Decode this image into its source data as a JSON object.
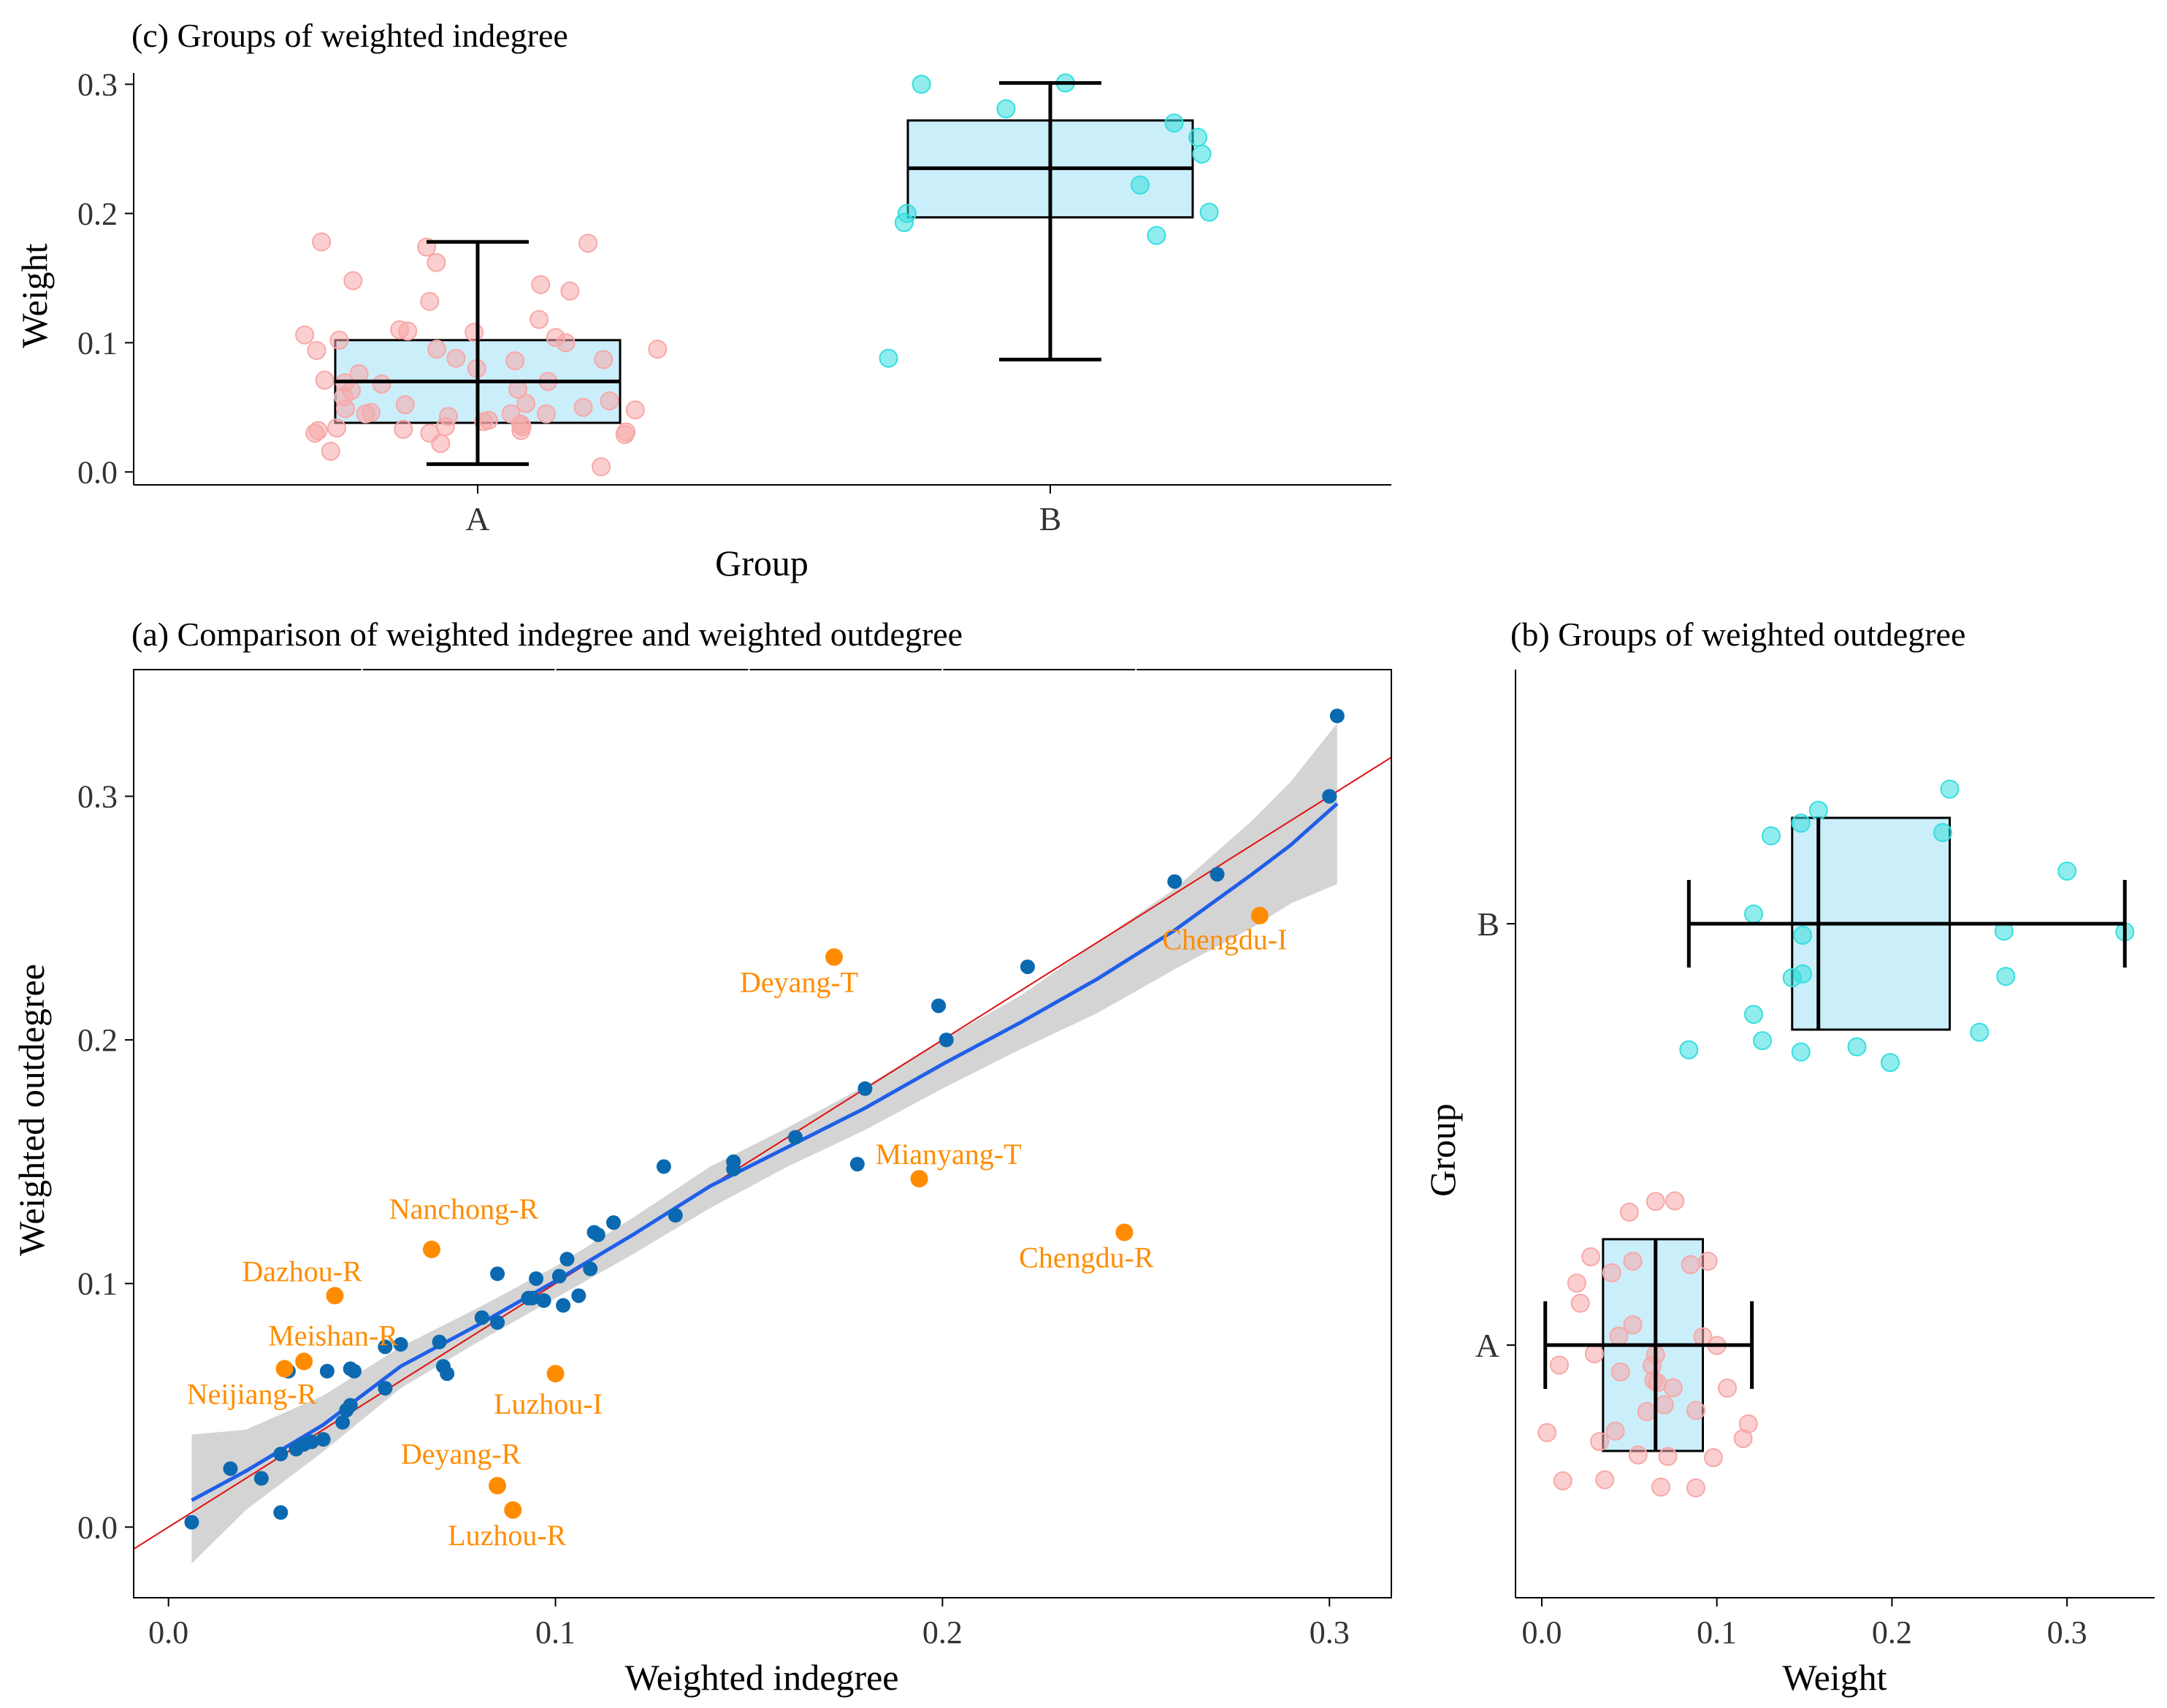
{
  "colors": {
    "axis": "#000000",
    "box_fill": "#cbeefb",
    "group_a_point": "#f8a8a8",
    "group_b_point": "#37dede",
    "scatter_point": "#0a69b0",
    "outlier_point": "#ff8c00",
    "outlier_label": "#ff8c00",
    "loess_line": "#1f5fe8",
    "ref_line": "#e01010",
    "ci_band": "#cccccc"
  },
  "chart_data": [
    {
      "id": "c",
      "type": "box",
      "title": "(c) Groups of weighted indegree",
      "xlabel": "Group",
      "ylabel": "Weight",
      "orientation": "vertical",
      "ylim": [
        -0.01,
        0.32
      ],
      "yticks": [
        0.0,
        0.1,
        0.2,
        0.3
      ],
      "ytick_labels": [
        "0.0",
        "0.1",
        "0.2",
        "0.3"
      ],
      "categories": [
        "A",
        "B"
      ],
      "boxes": [
        {
          "group": "A",
          "min": 0.006,
          "q1": 0.038,
          "median": 0.07,
          "q3": 0.102,
          "max": 0.178
        },
        {
          "group": "B",
          "min": 0.087,
          "q1": 0.197,
          "median": 0.235,
          "q3": 0.272,
          "max": 0.301
        }
      ],
      "points": [
        {
          "group": "A",
          "values": [
            0.043,
            0.033,
            0.029,
            0.037,
            0.031,
            0.045,
            0.102,
            0.087,
            0.094,
            0.11,
            0.1,
            0.053,
            0.058,
            0.032,
            0.046,
            0.108,
            0.088,
            0.148,
            0.106,
            0.069,
            0.035,
            0.05,
            0.045,
            0.076,
            0.016,
            0.095,
            0.178,
            0.177,
            0.162,
            0.14,
            0.004,
            0.08,
            0.063,
            0.095,
            0.07,
            0.048,
            0.049,
            0.145,
            0.174,
            0.132,
            0.118,
            0.071,
            0.03,
            0.068,
            0.035,
            0.052,
            0.03,
            0.022,
            0.064,
            0.109,
            0.039,
            0.086,
            0.045,
            0.055,
            0.104,
            0.034,
            0.032,
            0.04
          ]
        },
        {
          "group": "B",
          "values": [
            0.2,
            0.259,
            0.301,
            0.183,
            0.281,
            0.222,
            0.088,
            0.27,
            0.201,
            0.3,
            0.246,
            0.193
          ]
        }
      ]
    },
    {
      "id": "a",
      "type": "scatter",
      "title": "(a) Comparison of weighted indegree and weighted outdegree",
      "xlabel": "Weighted indegree",
      "ylabel": "Weighted outdegree",
      "xlim": [
        -0.009,
        0.316
      ],
      "ylim": [
        -0.029,
        0.352
      ],
      "xticks": [
        0.0,
        0.1,
        0.2,
        0.3
      ],
      "xtick_labels": [
        "0.0",
        "0.1",
        "0.2",
        "0.3"
      ],
      "yticks": [
        0.0,
        0.1,
        0.2,
        0.3
      ],
      "ytick_labels": [
        "0.0",
        "0.1",
        "0.2",
        "0.3"
      ],
      "points": [
        [
          0.006,
          0.002
        ],
        [
          0.016,
          0.024
        ],
        [
          0.024,
          0.02
        ],
        [
          0.029,
          0.006
        ],
        [
          0.029,
          0.03
        ],
        [
          0.031,
          0.064
        ],
        [
          0.033,
          0.032
        ],
        [
          0.035,
          0.034
        ],
        [
          0.037,
          0.035
        ],
        [
          0.04,
          0.036
        ],
        [
          0.041,
          0.064
        ],
        [
          0.045,
          0.043
        ],
        [
          0.046,
          0.048
        ],
        [
          0.047,
          0.05
        ],
        [
          0.048,
          0.064
        ],
        [
          0.047,
          0.065
        ],
        [
          0.056,
          0.057
        ],
        [
          0.056,
          0.074
        ],
        [
          0.06,
          0.075
        ],
        [
          0.07,
          0.076
        ],
        [
          0.071,
          0.066
        ],
        [
          0.072,
          0.063
        ],
        [
          0.081,
          0.086
        ],
        [
          0.085,
          0.084
        ],
        [
          0.085,
          0.104
        ],
        [
          0.093,
          0.094
        ],
        [
          0.094,
          0.094
        ],
        [
          0.095,
          0.102
        ],
        [
          0.097,
          0.093
        ],
        [
          0.101,
          0.103
        ],
        [
          0.102,
          0.091
        ],
        [
          0.103,
          0.11
        ],
        [
          0.106,
          0.095
        ],
        [
          0.109,
          0.106
        ],
        [
          0.11,
          0.121
        ],
        [
          0.111,
          0.12
        ],
        [
          0.115,
          0.125
        ],
        [
          0.128,
          0.148
        ],
        [
          0.131,
          0.128
        ],
        [
          0.146,
          0.147
        ],
        [
          0.146,
          0.15
        ],
        [
          0.162,
          0.16
        ],
        [
          0.178,
          0.149
        ],
        [
          0.18,
          0.18
        ],
        [
          0.199,
          0.214
        ],
        [
          0.201,
          0.2
        ],
        [
          0.222,
          0.23
        ],
        [
          0.26,
          0.265
        ],
        [
          0.271,
          0.268
        ],
        [
          0.3,
          0.3
        ],
        [
          0.302,
          0.333
        ]
      ],
      "highlighted": [
        {
          "label": "Deyang-T",
          "x": 0.172,
          "y": 0.234
        },
        {
          "label": "Chengdu-I",
          "x": 0.282,
          "y": 0.251
        },
        {
          "label": "Mianyang-T",
          "x": 0.194,
          "y": 0.143
        },
        {
          "label": "Chengdu-R",
          "x": 0.247,
          "y": 0.121
        },
        {
          "label": "Nanchong-R",
          "x": 0.068,
          "y": 0.114
        },
        {
          "label": "Dazhou-R",
          "x": 0.043,
          "y": 0.095
        },
        {
          "label": "Meishan-R",
          "x": 0.035,
          "y": 0.068
        },
        {
          "label": "Neijiang-R",
          "x": 0.03,
          "y": 0.065
        },
        {
          "label": "Luzhou-I",
          "x": 0.1,
          "y": 0.063
        },
        {
          "label": "Deyang-R",
          "x": 0.085,
          "y": 0.017
        },
        {
          "label": "Luzhou-R",
          "x": 0.089,
          "y": 0.007
        }
      ],
      "reference_line": {
        "slope": 1,
        "intercept": 0
      },
      "smooth_line": {
        "x": [
          0.006,
          0.02,
          0.04,
          0.06,
          0.08,
          0.1,
          0.12,
          0.14,
          0.16,
          0.18,
          0.2,
          0.22,
          0.24,
          0.26,
          0.28,
          0.29,
          0.302
        ],
        "y": [
          0.011,
          0.023,
          0.042,
          0.066,
          0.083,
          0.101,
          0.12,
          0.14,
          0.156,
          0.172,
          0.19,
          0.207,
          0.225,
          0.245,
          0.268,
          0.28,
          0.297
        ]
      },
      "ci_band": {
        "x": [
          0.006,
          0.02,
          0.04,
          0.06,
          0.08,
          0.1,
          0.12,
          0.14,
          0.16,
          0.18,
          0.2,
          0.22,
          0.24,
          0.26,
          0.28,
          0.29,
          0.302
        ],
        "lower": [
          -0.015,
          0.007,
          0.031,
          0.057,
          0.076,
          0.094,
          0.112,
          0.131,
          0.148,
          0.163,
          0.18,
          0.196,
          0.211,
          0.229,
          0.246,
          0.256,
          0.264
        ],
        "upper": [
          0.038,
          0.04,
          0.054,
          0.074,
          0.09,
          0.107,
          0.127,
          0.148,
          0.164,
          0.181,
          0.2,
          0.218,
          0.24,
          0.262,
          0.29,
          0.306,
          0.33
        ]
      }
    },
    {
      "id": "b",
      "type": "box",
      "title": "(b) Groups of weighted outdegree",
      "xlabel": "Weight",
      "ylabel": "Group",
      "orientation": "horizontal",
      "xlim": [
        -0.015,
        0.35
      ],
      "xticks": [
        0.0,
        0.1,
        0.2,
        0.3
      ],
      "xtick_labels": [
        "0.0",
        "0.1",
        "0.2",
        "0.3"
      ],
      "categories": [
        "A",
        "B"
      ],
      "boxes": [
        {
          "group": "A",
          "min": 0.002,
          "q1": 0.035,
          "median": 0.065,
          "q3": 0.092,
          "max": 0.12
        },
        {
          "group": "B",
          "min": 0.084,
          "q1": 0.143,
          "median": 0.158,
          "q3": 0.233,
          "max": 0.333
        }
      ],
      "points": [
        {
          "group": "A",
          "values": [
            0.065,
            0.052,
            0.06,
            0.033,
            0.088,
            0.03,
            0.075,
            0.068,
            0.045,
            0.1,
            0.022,
            0.115,
            0.064,
            0.003,
            0.055,
            0.092,
            0.042,
            0.118,
            0.01,
            0.028,
            0.066,
            0.076,
            0.05,
            0.085,
            0.036,
            0.095,
            0.063,
            0.02,
            0.106,
            0.044,
            0.072,
            0.012,
            0.088,
            0.07,
            0.04,
            0.052,
            0.098,
            0.065
          ]
        },
        {
          "group": "B",
          "values": [
            0.148,
            0.158,
            0.121,
            0.131,
            0.229,
            0.265,
            0.084,
            0.149,
            0.199,
            0.25,
            0.333,
            0.18,
            0.264,
            0.3,
            0.143,
            0.149,
            0.121,
            0.233,
            0.126,
            0.148
          ]
        }
      ]
    }
  ]
}
